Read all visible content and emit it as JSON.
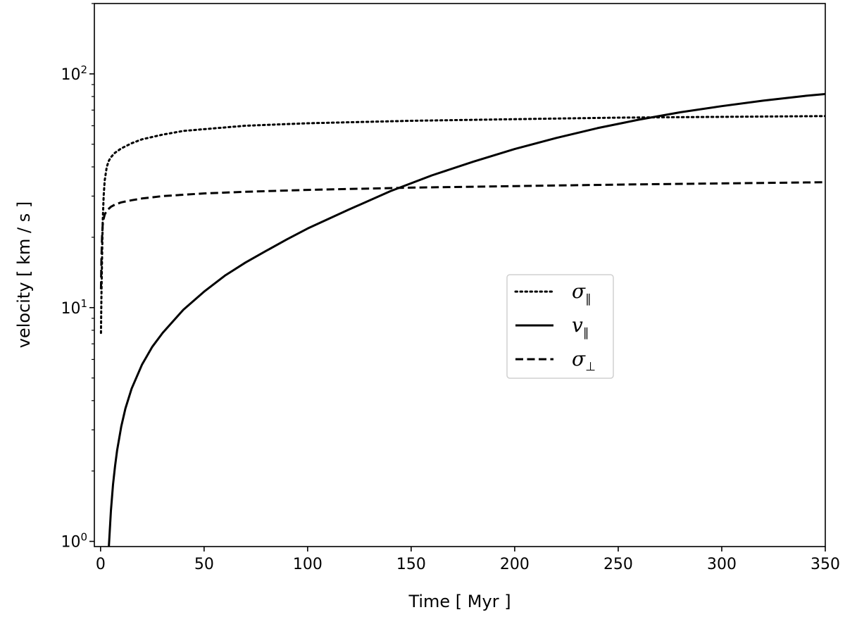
{
  "chart_data": {
    "type": "line",
    "xlabel": "Time [ Myr ]",
    "ylabel": "velocity [ km / s ]",
    "xlim": [
      -3,
      350
    ],
    "ylim": [
      0.95,
      200
    ],
    "yscale": "log",
    "grid": false,
    "legend_position": "center-right",
    "x_ticks": [
      0,
      50,
      100,
      150,
      200,
      250,
      300,
      350
    ],
    "x_tick_labels": [
      "0",
      "50",
      "100",
      "150",
      "200",
      "250",
      "300",
      "350"
    ],
    "y_ticks": [
      1,
      10,
      100
    ],
    "y_tick_labels": [
      {
        "base": "10",
        "exp": "0"
      },
      {
        "base": "10",
        "exp": "1"
      },
      {
        "base": "10",
        "exp": "2"
      }
    ],
    "series": [
      {
        "name": "σ∥",
        "symbol": "σ",
        "sub": "∥",
        "style": "dotted",
        "color": "#000000",
        "x": [
          0.2,
          0.4,
          0.7,
          1,
          1.5,
          2,
          3,
          4,
          5,
          7,
          10,
          15,
          20,
          30,
          40,
          50,
          70,
          100,
          150,
          200,
          250,
          300,
          350
        ],
        "y": [
          7.8,
          11,
          16,
          23,
          30,
          35,
          40,
          42.5,
          44,
          46,
          48,
          50.5,
          52.5,
          55,
          57,
          58,
          60,
          61.5,
          63,
          64,
          65,
          65.5,
          66
        ]
      },
      {
        "name": "v∥",
        "symbol": "v",
        "sub": "∥",
        "style": "solid",
        "color": "#000000",
        "x": [
          4,
          5,
          6,
          7,
          8,
          10,
          12,
          15,
          20,
          25,
          30,
          40,
          50,
          60,
          70,
          80,
          90,
          100,
          120,
          140,
          160,
          180,
          200,
          220,
          240,
          260,
          280,
          300,
          320,
          340,
          350
        ],
        "y": [
          0.95,
          1.35,
          1.75,
          2.1,
          2.45,
          3.1,
          3.7,
          4.5,
          5.7,
          6.8,
          7.8,
          9.8,
          11.7,
          13.7,
          15.6,
          17.5,
          19.6,
          21.8,
          26.3,
          31.5,
          36.8,
          42.1,
          47.7,
          53.2,
          58.6,
          63.7,
          68.5,
          72.8,
          76.8,
          80.5,
          82
        ]
      },
      {
        "name": "σ⊥",
        "symbol": "σ",
        "sub": "⊥",
        "style": "dashed",
        "color": "#000000",
        "x": [
          0.2,
          0.4,
          0.7,
          1,
          1.5,
          2,
          3,
          5,
          7,
          10,
          15,
          20,
          30,
          50,
          70,
          100,
          150,
          200,
          250,
          300,
          350
        ],
        "y": [
          12,
          16,
          20,
          22.5,
          24,
          25,
          26,
          27,
          27.6,
          28.2,
          28.8,
          29.3,
          30,
          30.8,
          31.3,
          31.9,
          32.6,
          33.1,
          33.6,
          34,
          34.4
        ]
      }
    ]
  }
}
